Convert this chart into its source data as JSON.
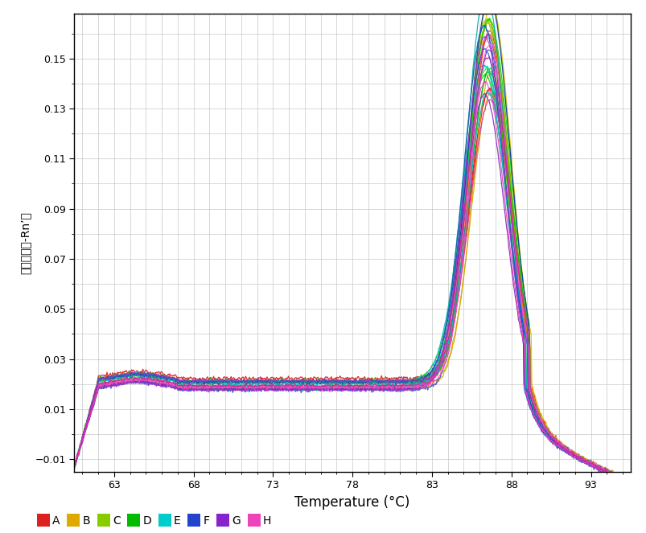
{
  "xlabel": "Temperature (°C)",
  "ylabel": "派生图谱（-Rn’）",
  "xlim": [
    60.5,
    95.5
  ],
  "ylim": [
    -0.015,
    0.168
  ],
  "xticks": [
    63.0,
    68.0,
    73.0,
    78.0,
    83.0,
    88.0,
    93.0
  ],
  "yticks": [
    -0.01,
    0.01,
    0.03,
    0.05,
    0.07,
    0.09,
    0.11,
    0.13,
    0.15
  ],
  "background_color": "#ffffff",
  "grid_color": "#c8c8c8",
  "legend_labels": [
    "A",
    "B",
    "C",
    "D",
    "E",
    "F",
    "G",
    "H"
  ],
  "legend_colors": [
    "#dd2020",
    "#ddaa00",
    "#88cc00",
    "#00bb00",
    "#00cccc",
    "#2244cc",
    "#8822cc",
    "#ee44bb"
  ],
  "group_colors": {
    "A": [
      "#ff1111",
      "#ee2222",
      "#ff3333",
      "#dd1111"
    ],
    "B": [
      "#ddaa00",
      "#ccaa00",
      "#eebb00",
      "#ddbb00"
    ],
    "C": [
      "#99cc00",
      "#88cc00",
      "#aabb00",
      "#77bb00"
    ],
    "D": [
      "#00cc00",
      "#00dd00",
      "#00bb00",
      "#11cc11",
      "#22dd00"
    ],
    "E": [
      "#00cccc",
      "#00bbcc",
      "#22ccdd",
      "#00aaaa",
      "#11bbbb"
    ],
    "F": [
      "#2244cc",
      "#1133bb",
      "#3355dd",
      "#2255aa"
    ],
    "G": [
      "#9933cc",
      "#8822bb",
      "#aa33cc"
    ],
    "H": [
      "#ee44bb",
      "#dd33aa",
      "#ff55cc",
      "#cc2299"
    ]
  }
}
